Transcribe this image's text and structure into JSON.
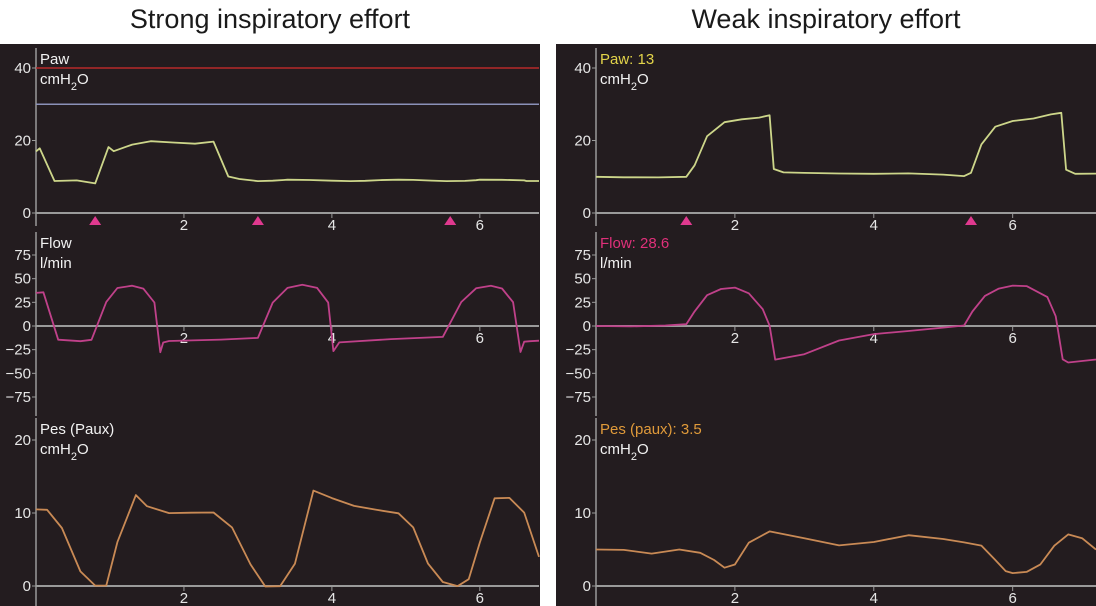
{
  "titles": {
    "left": "Strong inspiratory effort",
    "right": "Weak inspiratory effort"
  },
  "colors": {
    "background": "#231c1f",
    "axis": "#9a9a9a",
    "tick_text": "#e6e6e6",
    "label_text": "#f2f2f2",
    "paw_trace": "#cdd68a",
    "flow_trace": "#c0418a",
    "pes_trace": "#c98a55",
    "trigger": "#e0398f",
    "upper_limit_line": "#b72a2a",
    "target_line": "#8b91b8",
    "paw_readout": "#e3d44a",
    "flow_readout": "#e0307a",
    "pes_readout": "#e09a3a"
  },
  "chart_data": [
    {
      "type": "line",
      "title": "Strong inspiratory effort",
      "panels": [
        {
          "id": "paw",
          "label_lines": [
            "Paw",
            "cmH2O"
          ],
          "readout": "",
          "ylim": [
            0,
            42
          ],
          "yticks": [
            0,
            20,
            40
          ],
          "xticks": [
            2,
            4,
            6
          ],
          "xlim": [
            0,
            6.8
          ],
          "reference_lines": [
            {
              "y": 40,
              "color": "upper_limit_line"
            },
            {
              "y": 30,
              "color": "target_line"
            }
          ],
          "trigger_markers_x": [
            0.8,
            3.0,
            5.6
          ],
          "series": [
            {
              "x": [
                0,
                0.05,
                0.25,
                0.55,
                0.8,
                0.98,
                1.05,
                1.3,
                1.55,
                1.85,
                2.15,
                2.4,
                2.6,
                2.75,
                3.0,
                3.2,
                3.35,
                3.4,
                3.7,
                4.0,
                4.25,
                4.45,
                4.65,
                4.9,
                5.1,
                5.35,
                5.55,
                5.8,
                5.95,
                6.0,
                6.3,
                6.6,
                6.63,
                6.8
              ],
              "y": [
                17,
                18,
                9,
                9,
                8,
                18,
                17,
                19,
                20,
                19.5,
                19,
                19.5,
                10,
                9.5,
                9,
                9,
                9,
                9,
                9,
                9,
                9,
                9,
                9,
                9,
                9,
                9,
                9,
                9,
                9,
                9,
                9,
                9,
                9,
                9
              ],
              "raw_note": ""
            }
          ]
        },
        {
          "id": "flow",
          "label_lines": [
            "Flow",
            "l/min"
          ],
          "readout": "",
          "ylim": [
            -90,
            80
          ],
          "yticks": [
            75,
            50,
            25,
            0,
            -25,
            -50,
            -75
          ],
          "xticks": [
            2,
            4,
            6
          ],
          "xlim": [
            0,
            6.8
          ],
          "reference_lines": [
            {
              "y": 0,
              "color": "axis"
            }
          ],
          "trigger_markers_x": [],
          "series": [
            {
              "x": [
                0,
                0.1,
                0.3,
                0.6,
                0.75,
                0.95,
                1.1,
                1.3,
                1.45,
                1.6,
                1.68,
                1.72,
                1.8,
                2.5,
                3.0,
                3.2,
                3.4,
                3.6,
                3.8,
                3.95,
                4.02,
                4.1,
                4.8,
                5.5,
                5.75,
                5.95,
                6.15,
                6.3,
                6.45,
                6.55,
                6.6,
                6.68,
                6.8
              ],
              "y": [
                35,
                36,
                -14,
                -16,
                -15,
                25,
                40,
                43,
                40,
                25,
                -28,
                -18,
                -16,
                -14,
                -12,
                25,
                40,
                43,
                40,
                25,
                -26,
                -17,
                -14,
                -12,
                25,
                40,
                43,
                40,
                25,
                -28,
                -17,
                -16,
                -15
              ]
            }
          ]
        },
        {
          "id": "pes",
          "label_lines": [
            "Pes (Paux)",
            "cmH2O"
          ],
          "readout": "",
          "ylim": [
            -1,
            22
          ],
          "yticks": [
            0,
            10,
            20
          ],
          "xticks": [
            2,
            4,
            6
          ],
          "xlim": [
            0,
            6.8
          ],
          "reference_lines": [
            {
              "y": 0,
              "color": "axis"
            }
          ],
          "trigger_markers_x": [],
          "series": [
            {
              "x": [
                0,
                0.15,
                0.35,
                0.6,
                0.8,
                0.95,
                1.1,
                1.35,
                1.5,
                1.8,
                2.1,
                2.4,
                2.65,
                2.9,
                3.1,
                3.3,
                3.5,
                3.75,
                4.0,
                4.3,
                4.6,
                4.9,
                5.1,
                5.3,
                5.5,
                5.7,
                5.85,
                6.0,
                6.2,
                6.4,
                6.6,
                6.8
              ],
              "y": [
                10.5,
                10.5,
                8,
                2,
                0,
                0,
                6,
                12.5,
                11,
                10,
                10,
                10,
                8,
                3,
                0,
                0,
                3,
                13,
                12,
                11,
                10.5,
                10,
                8,
                3,
                0.5,
                0,
                1,
                6,
                12,
                12,
                10,
                4
              ]
            }
          ]
        }
      ]
    },
    {
      "type": "line",
      "title": "Weak inspiratory effort",
      "panels": [
        {
          "id": "paw",
          "label_lines": [
            "Paw: 13",
            "cmH2O"
          ],
          "readout": "13",
          "ylim": [
            0,
            42
          ],
          "yticks": [
            0,
            20,
            40
          ],
          "xticks": [
            2,
            4,
            6
          ],
          "xlim": [
            0,
            7.2
          ],
          "reference_lines": [],
          "trigger_markers_x": [
            1.3,
            5.4
          ],
          "series": [
            {
              "x": [
                0,
                0.4,
                0.9,
                1.3,
                1.42,
                1.6,
                1.85,
                2.1,
                2.35,
                2.5,
                2.56,
                2.7,
                3.0,
                3.5,
                4.0,
                4.5,
                5.0,
                5.3,
                5.4,
                5.55,
                5.75,
                6.0,
                6.3,
                6.55,
                6.7,
                6.77,
                6.9,
                7.2
              ],
              "y": [
                10,
                10,
                10,
                10,
                13,
                21,
                25,
                26,
                26.5,
                27,
                12,
                11,
                11,
                11,
                11,
                11,
                10.5,
                10,
                11,
                19,
                24,
                25.5,
                26,
                27,
                27.5,
                12,
                11,
                11
              ]
            }
          ]
        },
        {
          "id": "flow",
          "label_lines": [
            "Flow: 28.6",
            "l/min"
          ],
          "readout": "28.6",
          "ylim": [
            -90,
            80
          ],
          "yticks": [
            75,
            50,
            25,
            0,
            -25,
            -50,
            -75
          ],
          "xticks": [
            2,
            4,
            6
          ],
          "xlim": [
            0,
            7.2
          ],
          "reference_lines": [
            {
              "y": 0,
              "color": "axis"
            }
          ],
          "trigger_markers_x": [],
          "series": [
            {
              "x": [
                0,
                0.5,
                1.0,
                1.3,
                1.42,
                1.6,
                1.8,
                2.0,
                2.2,
                2.4,
                2.5,
                2.58,
                3.0,
                3.5,
                4.0,
                4.5,
                5.0,
                5.3,
                5.42,
                5.6,
                5.8,
                6.0,
                6.2,
                6.5,
                6.62,
                6.72,
                6.8,
                7.2
              ],
              "y": [
                0,
                0,
                1,
                2,
                15,
                32,
                39,
                41,
                35,
                18,
                0,
                -36,
                -30,
                -15,
                -8,
                -5,
                -2,
                0,
                15,
                32,
                40,
                43,
                42,
                30,
                10,
                -35,
                -38,
                -35
              ]
            }
          ]
        },
        {
          "id": "pes",
          "label_lines": [
            "Pes (paux): 3.5",
            "cmH2O"
          ],
          "readout": "3.5",
          "ylim": [
            -1,
            22
          ],
          "yticks": [
            0,
            10,
            20
          ],
          "xticks": [
            2,
            4,
            6
          ],
          "xlim": [
            0,
            7.2
          ],
          "reference_lines": [
            {
              "y": 0,
              "color": "axis"
            }
          ],
          "trigger_markers_x": [],
          "series": [
            {
              "x": [
                0,
                0.4,
                0.8,
                1.2,
                1.5,
                1.7,
                1.85,
                2.0,
                2.2,
                2.5,
                3.0,
                3.5,
                4.0,
                4.5,
                5.0,
                5.3,
                5.55,
                5.75,
                5.9,
                6.0,
                6.2,
                6.4,
                6.6,
                6.8,
                7.0,
                7.2
              ],
              "y": [
                5,
                5,
                4.5,
                5,
                4.5,
                3.5,
                2.5,
                3,
                6,
                7.5,
                6.5,
                5.5,
                6,
                7,
                6.5,
                6,
                5.5,
                3.5,
                2,
                1.8,
                2,
                3,
                5.5,
                7,
                6.5,
                5
              ]
            }
          ]
        }
      ]
    }
  ]
}
